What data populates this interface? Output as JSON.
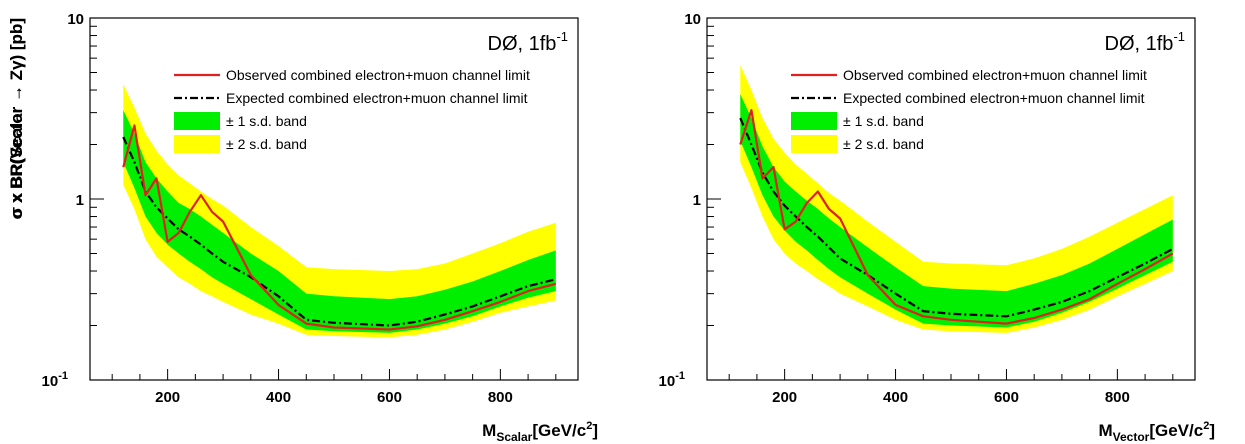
{
  "chart_data": [
    {
      "type": "line",
      "experiment_label": "DØ, 1fb",
      "experiment_label_sup": "-1",
      "ylabel": "σ x BR(Scalar → Zγ) [pb]",
      "xlabel_main": "M",
      "xlabel_sub": "Scalar",
      "xlabel_rest": "[GeV/c",
      "xlabel_sup": "2",
      "xlabel_end": "]",
      "xlim": [
        60,
        940
      ],
      "ylim": [
        0.1,
        10
      ],
      "yscale": "log",
      "x_ticks": [
        "200",
        "400",
        "600",
        "800"
      ],
      "x_tick_values": [
        200,
        400,
        600,
        800
      ],
      "y_ticks": [
        {
          "value": 10,
          "base": "10",
          "sup": ""
        },
        {
          "value": 1,
          "base": "1",
          "sup": ""
        },
        {
          "value": 0.1,
          "base": "10",
          "sup": "-1"
        }
      ],
      "legend": [
        {
          "label": "Observed combined electron+muon channel limit",
          "kind": "line",
          "color": "#e02020"
        },
        {
          "label": "Expected combined electron+muon channel limit",
          "kind": "dashdot",
          "color": "#000000"
        },
        {
          "label": "± 1 s.d. band",
          "kind": "box",
          "color": "#00ee00"
        },
        {
          "label": "± 2 s.d. band",
          "kind": "box",
          "color": "#ffff00"
        }
      ],
      "colors": {
        "observed": "#e02020",
        "expected": "#000000",
        "band1": "#00ee00",
        "band2": "#ffff00"
      },
      "x": [
        120,
        140,
        160,
        180,
        200,
        220,
        240,
        260,
        280,
        300,
        350,
        400,
        450,
        500,
        600,
        650,
        700,
        750,
        800,
        850,
        900
      ],
      "observed": [
        1.5,
        2.55,
        1.05,
        1.3,
        0.58,
        0.65,
        0.85,
        1.05,
        0.85,
        0.75,
        0.38,
        0.26,
        0.205,
        0.195,
        0.19,
        0.198,
        0.215,
        0.24,
        0.27,
        0.31,
        0.34
      ],
      "expected": [
        2.2,
        1.6,
        1.1,
        0.9,
        0.78,
        0.68,
        0.62,
        0.56,
        0.5,
        0.45,
        0.37,
        0.29,
        0.215,
        0.207,
        0.2,
        0.21,
        0.23,
        0.255,
        0.29,
        0.33,
        0.36
      ],
      "band1_low": [
        1.6,
        1.15,
        0.8,
        0.65,
        0.56,
        0.5,
        0.45,
        0.41,
        0.37,
        0.34,
        0.28,
        0.23,
        0.19,
        0.186,
        0.182,
        0.19,
        0.205,
        0.225,
        0.255,
        0.285,
        0.31
      ],
      "band1_high": [
        3.1,
        2.3,
        1.6,
        1.3,
        1.1,
        0.95,
        0.88,
        0.8,
        0.72,
        0.65,
        0.5,
        0.4,
        0.3,
        0.29,
        0.28,
        0.29,
        0.315,
        0.35,
        0.4,
        0.46,
        0.52
      ],
      "band2_low": [
        1.2,
        0.88,
        0.6,
        0.48,
        0.42,
        0.37,
        0.34,
        0.31,
        0.29,
        0.27,
        0.23,
        0.205,
        0.178,
        0.175,
        0.172,
        0.178,
        0.19,
        0.21,
        0.235,
        0.255,
        0.275
      ],
      "band2_high": [
        4.3,
        3.2,
        2.3,
        1.85,
        1.55,
        1.35,
        1.22,
        1.1,
        1.0,
        0.92,
        0.7,
        0.55,
        0.42,
        0.41,
        0.4,
        0.41,
        0.44,
        0.5,
        0.57,
        0.66,
        0.74
      ]
    },
    {
      "type": "line",
      "experiment_label": "DØ, 1fb",
      "experiment_label_sup": "-1",
      "ylabel": "σ x BR(Vector → Zγ) [pb]",
      "xlabel_main": "M",
      "xlabel_sub": "Vector",
      "xlabel_rest": "[GeV/c",
      "xlabel_sup": "2",
      "xlabel_end": "]",
      "xlim": [
        60,
        940
      ],
      "ylim": [
        0.1,
        10
      ],
      "yscale": "log",
      "x_ticks": [
        "200",
        "400",
        "600",
        "800"
      ],
      "x_tick_values": [
        200,
        400,
        600,
        800
      ],
      "y_ticks": [
        {
          "value": 10,
          "base": "10",
          "sup": ""
        },
        {
          "value": 1,
          "base": "1",
          "sup": ""
        },
        {
          "value": 0.1,
          "base": "10",
          "sup": "-1"
        }
      ],
      "legend": [
        {
          "label": "Observed combined electron+muon channel limit",
          "kind": "line",
          "color": "#e02020"
        },
        {
          "label": "Expected combined electron+muon channel limit",
          "kind": "dashdot",
          "color": "#000000"
        },
        {
          "label": "± 1 s.d. band",
          "kind": "box",
          "color": "#00ee00"
        },
        {
          "label": "± 2 s.d. band",
          "kind": "box",
          "color": "#ffff00"
        }
      ],
      "colors": {
        "observed": "#e02020",
        "expected": "#000000",
        "band1": "#00ee00",
        "band2": "#ffff00"
      },
      "x": [
        120,
        140,
        160,
        180,
        200,
        220,
        240,
        260,
        280,
        300,
        350,
        400,
        450,
        500,
        600,
        650,
        700,
        750,
        800,
        850,
        900
      ],
      "observed": [
        2.0,
        3.1,
        1.3,
        1.5,
        0.68,
        0.75,
        0.95,
        1.1,
        0.88,
        0.78,
        0.38,
        0.26,
        0.225,
        0.215,
        0.205,
        0.22,
        0.245,
        0.28,
        0.34,
        0.41,
        0.5
      ],
      "expected": [
        2.8,
        2.0,
        1.4,
        1.1,
        0.92,
        0.8,
        0.7,
        0.62,
        0.54,
        0.47,
        0.38,
        0.3,
        0.24,
        0.232,
        0.225,
        0.245,
        0.27,
        0.31,
        0.37,
        0.44,
        0.53
      ],
      "band1_low": [
        2.1,
        1.5,
        1.05,
        0.8,
        0.67,
        0.58,
        0.52,
        0.46,
        0.41,
        0.37,
        0.3,
        0.245,
        0.205,
        0.2,
        0.195,
        0.21,
        0.235,
        0.27,
        0.32,
        0.38,
        0.45
      ],
      "band1_high": [
        3.8,
        2.8,
        1.95,
        1.5,
        1.25,
        1.1,
        0.98,
        0.88,
        0.78,
        0.7,
        0.54,
        0.42,
        0.33,
        0.32,
        0.31,
        0.34,
        0.38,
        0.44,
        0.53,
        0.64,
        0.77
      ],
      "band2_low": [
        1.6,
        1.15,
        0.8,
        0.6,
        0.5,
        0.44,
        0.4,
        0.36,
        0.33,
        0.3,
        0.255,
        0.215,
        0.19,
        0.186,
        0.182,
        0.195,
        0.215,
        0.245,
        0.29,
        0.34,
        0.4
      ],
      "band2_high": [
        5.5,
        4.0,
        2.8,
        2.15,
        1.8,
        1.55,
        1.38,
        1.22,
        1.08,
        0.98,
        0.75,
        0.58,
        0.45,
        0.44,
        0.43,
        0.47,
        0.53,
        0.62,
        0.74,
        0.88,
        1.05
      ]
    }
  ]
}
